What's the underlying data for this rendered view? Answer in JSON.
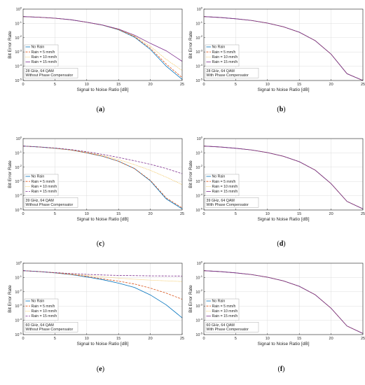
{
  "chart_data": [
    {
      "id": "a",
      "type": "line",
      "caption": "a",
      "note": [
        "28 GHz, 64 QAM",
        "Without Phase Compensator"
      ],
      "xlabel": "Signal to Noise Ratio [dB]",
      "ylabel": "Bit Error Rate",
      "xlim": [
        0,
        25
      ],
      "ylim_log10": [
        -5,
        0
      ],
      "yscale": "log",
      "xticks": [
        0,
        5,
        10,
        15,
        20,
        25
      ],
      "yticks_exp": [
        0,
        -1,
        -2,
        -3,
        -4,
        -5
      ],
      "grid": true,
      "legend_position": "left",
      "x": [
        0,
        2.5,
        5,
        7.5,
        10,
        12.5,
        15,
        17.5,
        20,
        22.5,
        25
      ],
      "series": [
        {
          "name": "No Rain",
          "color": "#0072BD",
          "dash": "solid",
          "values": [
            0.3,
            0.27,
            0.23,
            0.18,
            0.12,
            0.075,
            0.036,
            0.011,
            0.0015,
            0.0001,
            1.2e-05
          ]
        },
        {
          "name": "Rain = 5 mm/h",
          "color": "#D95319",
          "dash": "dashed",
          "values": [
            0.3,
            0.27,
            0.23,
            0.18,
            0.12,
            0.075,
            0.037,
            0.012,
            0.0018,
            0.00014,
            1.6e-05
          ]
        },
        {
          "name": "Rain = 10 mm/h",
          "color": "#EDB120",
          "dash": "dotted",
          "values": [
            0.3,
            0.27,
            0.23,
            0.18,
            0.12,
            0.076,
            0.038,
            0.013,
            0.0025,
            0.0003,
            5e-05
          ]
        },
        {
          "name": "Rain = 15 mm/h",
          "color": "#7E2F8E",
          "dash": "solid",
          "values": [
            0.3,
            0.27,
            0.23,
            0.18,
            0.12,
            0.077,
            0.04,
            0.015,
            0.004,
            0.0012,
            0.00022
          ]
        }
      ]
    },
    {
      "id": "b",
      "type": "line",
      "caption": "b",
      "note": [
        "28 GHz, 64 QAM",
        "With Phase Compensator"
      ],
      "xlabel": "Signal to Noise Ratio [dB]",
      "ylabel": "Bit Error Rate",
      "xlim": [
        0,
        25
      ],
      "ylim_log10": [
        -5,
        0
      ],
      "yscale": "log",
      "xticks": [
        0,
        5,
        10,
        15,
        20,
        25
      ],
      "yticks_exp": [
        0,
        -1,
        -2,
        -3,
        -4,
        -5
      ],
      "grid": true,
      "legend_position": "left",
      "x": [
        0,
        2.5,
        5,
        7.5,
        10,
        12.5,
        15,
        17.5,
        20,
        22.5,
        25
      ],
      "series": [
        {
          "name": "No Rain",
          "color": "#0072BD",
          "dash": "solid",
          "values": [
            0.3,
            0.26,
            0.21,
            0.16,
            0.105,
            0.058,
            0.024,
            0.0062,
            0.0007,
            3e-05,
            6e-06
          ]
        },
        {
          "name": "Rain = 5 mm/h",
          "color": "#D95319",
          "dash": "dashed",
          "values": [
            0.3,
            0.26,
            0.21,
            0.16,
            0.105,
            0.058,
            0.024,
            0.0062,
            0.0007,
            3e-05,
            6e-06
          ]
        },
        {
          "name": "Rain = 10 mm/h",
          "color": "#EDB120",
          "dash": "dotted",
          "values": [
            0.3,
            0.26,
            0.21,
            0.16,
            0.105,
            0.058,
            0.024,
            0.0062,
            0.0007,
            3e-05,
            6e-06
          ]
        },
        {
          "name": "Rain = 15 mm/h",
          "color": "#7E2F8E",
          "dash": "solid",
          "values": [
            0.3,
            0.26,
            0.21,
            0.16,
            0.105,
            0.058,
            0.024,
            0.0062,
            0.0007,
            3e-05,
            6e-06
          ]
        }
      ]
    },
    {
      "id": "c",
      "type": "line",
      "caption": "c",
      "note": [
        "39 GHz, 64 QAM",
        "Without Phase Compensator"
      ],
      "xlabel": "Signal to Noise Ratio [dB]",
      "ylabel": "Bit Error Rate",
      "xlim": [
        0,
        25
      ],
      "ylim_log10": [
        -5,
        0
      ],
      "yscale": "log",
      "xticks": [
        0,
        5,
        10,
        15,
        20,
        25
      ],
      "yticks_exp": [
        0,
        -1,
        -2,
        -3,
        -4,
        -5
      ],
      "grid": true,
      "legend_position": "left",
      "x": [
        0,
        2.5,
        5,
        7.5,
        10,
        12.5,
        15,
        17.5,
        20,
        22.5,
        25
      ],
      "series": [
        {
          "name": "No Rain",
          "color": "#0072BD",
          "dash": "solid",
          "values": [
            0.3,
            0.26,
            0.21,
            0.16,
            0.1,
            0.058,
            0.026,
            0.008,
            0.0011,
            6e-05,
            1.2e-05
          ]
        },
        {
          "name": "Rain = 5 mm/h",
          "color": "#D95319",
          "dash": "dashed",
          "values": [
            0.3,
            0.26,
            0.21,
            0.16,
            0.1,
            0.058,
            0.026,
            0.008,
            0.0012,
            7e-05,
            1.4e-05
          ]
        },
        {
          "name": "Rain = 10 mm/h",
          "color": "#EDB120",
          "dash": "dotted",
          "values": [
            0.3,
            0.26,
            0.21,
            0.16,
            0.11,
            0.066,
            0.034,
            0.015,
            0.006,
            0.002,
            0.0006
          ]
        },
        {
          "name": "Rain = 15 mm/h",
          "color": "#7E2F8E",
          "dash": "dashed",
          "values": [
            0.3,
            0.26,
            0.22,
            0.17,
            0.12,
            0.078,
            0.048,
            0.028,
            0.016,
            0.008,
            0.0035
          ]
        }
      ]
    },
    {
      "id": "d",
      "type": "line",
      "caption": "d",
      "note": [
        "39 GHz, 64 QAM",
        "With Phase Compensator"
      ],
      "xlabel": "Signal to Noise Ratio [dB]",
      "ylabel": "Bit Error Rate",
      "xlim": [
        0,
        25
      ],
      "ylim_log10": [
        -5,
        0
      ],
      "yscale": "log",
      "xticks": [
        0,
        5,
        10,
        15,
        20,
        25
      ],
      "yticks_exp": [
        0,
        -1,
        -2,
        -3,
        -4,
        -5
      ],
      "grid": true,
      "legend_position": "left",
      "x": [
        0,
        2.5,
        5,
        7.5,
        10,
        12.5,
        15,
        17.5,
        20,
        22.5,
        25
      ],
      "series": [
        {
          "name": "No Rain",
          "color": "#0072BD",
          "dash": "solid",
          "values": [
            0.3,
            0.26,
            0.21,
            0.16,
            0.105,
            0.058,
            0.024,
            0.0062,
            0.0007,
            4e-05,
            1.2e-05
          ]
        },
        {
          "name": "Rain = 5 mm/h",
          "color": "#D95319",
          "dash": "dashed",
          "values": [
            0.3,
            0.26,
            0.21,
            0.16,
            0.105,
            0.058,
            0.024,
            0.0062,
            0.0007,
            4e-05,
            1.2e-05
          ]
        },
        {
          "name": "Rain = 10 mm/h",
          "color": "#EDB120",
          "dash": "dotted",
          "values": [
            0.3,
            0.26,
            0.21,
            0.16,
            0.105,
            0.058,
            0.024,
            0.0062,
            0.0007,
            4e-05,
            1.2e-05
          ]
        },
        {
          "name": "Rain = 15 mm/h",
          "color": "#7E2F8E",
          "dash": "solid",
          "values": [
            0.3,
            0.26,
            0.21,
            0.16,
            0.105,
            0.058,
            0.024,
            0.0062,
            0.0007,
            4e-05,
            1.2e-05
          ]
        }
      ]
    },
    {
      "id": "e",
      "type": "line",
      "caption": "e",
      "note": [
        "60 GHz, 64 QAM",
        "Without Phase Compensator"
      ],
      "xlabel": "Signal to Noise Ratio [dB]",
      "ylabel": "Bit Error Rate",
      "xlim": [
        0,
        25
      ],
      "ylim_log10": [
        -5,
        0
      ],
      "yscale": "log",
      "xticks": [
        0,
        5,
        10,
        15,
        20,
        25
      ],
      "yticks_exp": [
        0,
        -1,
        -2,
        -3,
        -4,
        -5
      ],
      "grid": true,
      "legend_position": "left",
      "x": [
        0,
        2.5,
        5,
        7.5,
        10,
        12.5,
        15,
        17.5,
        20,
        22.5,
        25
      ],
      "series": [
        {
          "name": "No Rain",
          "color": "#0072BD",
          "dash": "solid",
          "values": [
            0.3,
            0.26,
            0.21,
            0.16,
            0.11,
            0.07,
            0.04,
            0.02,
            0.006,
            0.0012,
            0.00015
          ]
        },
        {
          "name": "Rain = 5 mm/h",
          "color": "#D95319",
          "dash": "dashed",
          "values": [
            0.3,
            0.26,
            0.21,
            0.165,
            0.12,
            0.08,
            0.055,
            0.035,
            0.018,
            0.008,
            0.003
          ]
        },
        {
          "name": "Rain = 10 mm/h",
          "color": "#EDB120",
          "dash": "dotted",
          "values": [
            0.3,
            0.26,
            0.22,
            0.18,
            0.14,
            0.11,
            0.09,
            0.075,
            0.065,
            0.058,
            0.052
          ]
        },
        {
          "name": "Rain = 15 mm/h",
          "color": "#7E2F8E",
          "dash": "dashed",
          "values": [
            0.3,
            0.26,
            0.22,
            0.19,
            0.165,
            0.15,
            0.14,
            0.135,
            0.13,
            0.128,
            0.126
          ]
        }
      ]
    },
    {
      "id": "f",
      "type": "line",
      "caption": "f",
      "note": [
        "60 GHz, 64 QAM",
        "With Phase Compensator"
      ],
      "xlabel": "Signal to Noise Ratio [dB]",
      "ylabel": "Bit Error Rate",
      "xlim": [
        0,
        25
      ],
      "ylim_log10": [
        -5,
        0
      ],
      "yscale": "log",
      "xticks": [
        0,
        5,
        10,
        15,
        20,
        25
      ],
      "yticks_exp": [
        0,
        -1,
        -2,
        -3,
        -4,
        -5
      ],
      "grid": true,
      "legend_position": "left",
      "x": [
        0,
        2.5,
        5,
        7.5,
        10,
        12.5,
        15,
        17.5,
        20,
        22.5,
        25
      ],
      "series": [
        {
          "name": "No Rain",
          "color": "#0072BD",
          "dash": "solid",
          "values": [
            0.3,
            0.26,
            0.21,
            0.16,
            0.105,
            0.058,
            0.024,
            0.0062,
            0.0007,
            4e-05,
            1.2e-05
          ]
        },
        {
          "name": "Rain = 5 mm/h",
          "color": "#D95319",
          "dash": "dashed",
          "values": [
            0.3,
            0.26,
            0.21,
            0.16,
            0.105,
            0.058,
            0.024,
            0.0062,
            0.0007,
            4e-05,
            1.2e-05
          ]
        },
        {
          "name": "Rain = 10 mm/h",
          "color": "#EDB120",
          "dash": "dotted",
          "values": [
            0.3,
            0.26,
            0.21,
            0.16,
            0.105,
            0.058,
            0.024,
            0.0062,
            0.0007,
            4e-05,
            1.2e-05
          ]
        },
        {
          "name": "Rain = 15 mm/h",
          "color": "#7E2F8E",
          "dash": "solid",
          "values": [
            0.3,
            0.26,
            0.21,
            0.16,
            0.105,
            0.058,
            0.024,
            0.0062,
            0.0007,
            4e-05,
            1.2e-05
          ]
        }
      ]
    }
  ]
}
